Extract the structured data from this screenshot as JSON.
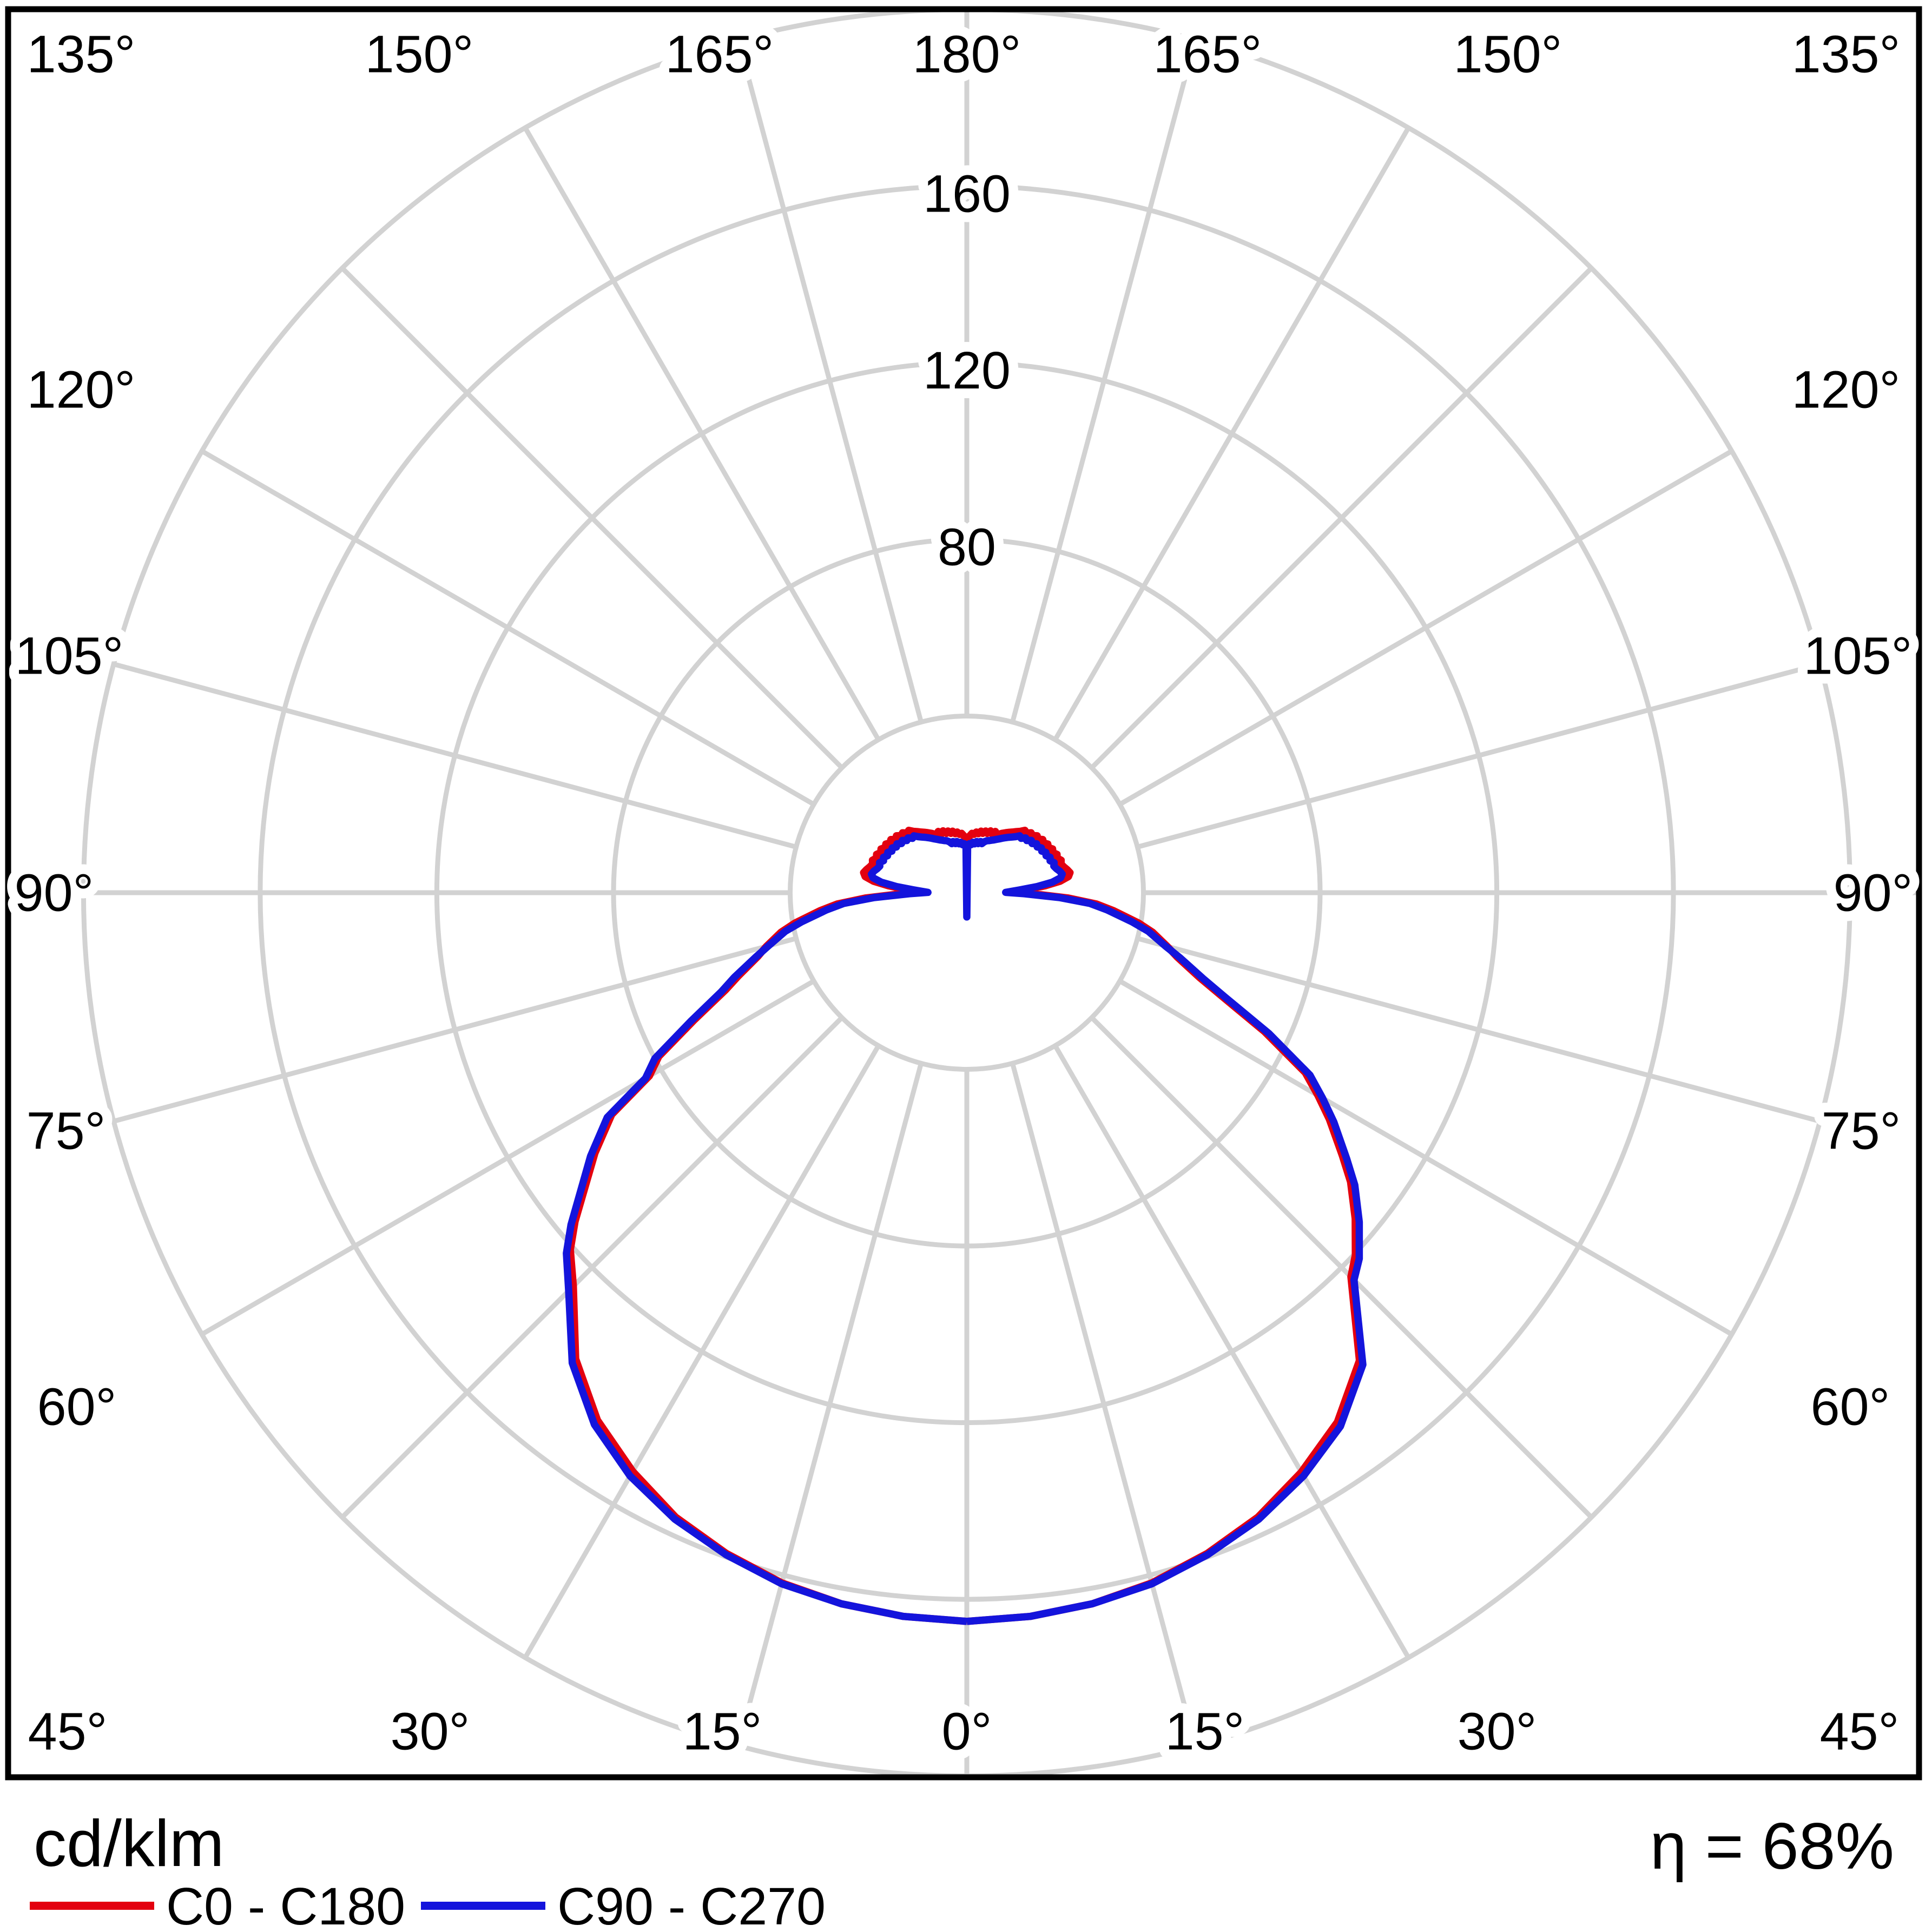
{
  "chart_data": {
    "type": "line",
    "subtype": "polar-photometric-intensity-distribution",
    "units_label": "cd/klm",
    "efficiency_label": "η = 68%",
    "grid": {
      "color": "#d2d2d2",
      "rings_cd_klm": [
        40,
        80,
        120,
        160,
        200
      ],
      "ring_labels": [
        "80",
        "120",
        "160"
      ],
      "ring_label_values": [
        80,
        120,
        160
      ],
      "spoke_step_deg": 15,
      "radial_max": 200
    },
    "angle_labels": {
      "top": [
        "135°",
        "150°",
        "165°",
        "180°",
        "165°",
        "150°",
        "135°"
      ],
      "bottom": [
        "45°",
        "30°",
        "15°",
        "0°",
        "15°",
        "30°",
        "45°"
      ],
      "left": [
        "120°",
        "105°",
        "90°",
        "75°",
        "60°"
      ],
      "right": [
        "120°",
        "105°",
        "90°",
        "75°",
        "60°"
      ]
    },
    "legend": [
      {
        "label": "C0 - C180",
        "color": "#e3000f"
      },
      {
        "label": "C90 - C270",
        "color": "#1414dc"
      }
    ],
    "series": [
      {
        "name": "C0 - C180",
        "color": "#e3000f",
        "left_gamma_value": [
          [
            0,
            165
          ],
          [
            5,
            164.5
          ],
          [
            10,
            163.5
          ],
          [
            15,
            161.8
          ],
          [
            20,
            159.2
          ],
          [
            25,
            156
          ],
          [
            30,
            151.3
          ],
          [
            35,
            145.8
          ],
          [
            40,
            137.8
          ],
          [
            45,
            126
          ],
          [
            48,
            120.8
          ],
          [
            50,
            115.8
          ],
          [
            55,
            102.8
          ],
          [
            58,
            94.8
          ],
          [
            60,
            83
          ],
          [
            62,
            79
          ],
          [
            65,
            68
          ],
          [
            68,
            59
          ],
          [
            70,
            55
          ],
          [
            73,
            49.5
          ],
          [
            75,
            47
          ],
          [
            78,
            43
          ],
          [
            80,
            39.5
          ],
          [
            83,
            33.5
          ],
          [
            85,
            29.5
          ],
          [
            87,
            23
          ],
          [
            89,
            15
          ],
          [
            90.5,
            9.5
          ],
          [
            93,
            13.8
          ],
          [
            95,
            17.8
          ],
          [
            97,
            21.3
          ],
          [
            99,
            23.3
          ],
          [
            101,
            23.8
          ],
          [
            103,
            23.3
          ],
          [
            105,
            22.7
          ],
          [
            107,
            22.3
          ],
          [
            109,
            22.6
          ],
          [
            111,
            21.9
          ],
          [
            113,
            22.2
          ],
          [
            115,
            21.5
          ],
          [
            117,
            21.8
          ],
          [
            119,
            21.1
          ],
          [
            121,
            21.4
          ],
          [
            123,
            20.7
          ],
          [
            125,
            21.0
          ],
          [
            127,
            20.2
          ],
          [
            129,
            20.5
          ],
          [
            131,
            19.7
          ],
          [
            133,
            19.9
          ],
          [
            135,
            19.1
          ],
          [
            137,
            19.3
          ],
          [
            139,
            18.4
          ],
          [
            141,
            17.8
          ],
          [
            143,
            17.2
          ],
          [
            145,
            16.7
          ],
          [
            147,
            16.2
          ],
          [
            149,
            15.7
          ],
          [
            151,
            15.2
          ],
          [
            153,
            14.8
          ],
          [
            155,
            15.3
          ],
          [
            157,
            14.5
          ],
          [
            159,
            15.0
          ],
          [
            161,
            14.2
          ],
          [
            163,
            14.6
          ],
          [
            165,
            13.9
          ],
          [
            167,
            14.3
          ],
          [
            169,
            13.6
          ],
          [
            171,
            13.9
          ],
          [
            173,
            13.3
          ],
          [
            175,
            13.5
          ],
          [
            177,
            12.9
          ],
          [
            179,
            12.0
          ],
          [
            180,
            8.3
          ]
        ],
        "right_gamma_value": [
          [
            0,
            165
          ],
          [
            5,
            164.5
          ],
          [
            10,
            163.5
          ],
          [
            15,
            161.8
          ],
          [
            20,
            159.2
          ],
          [
            25,
            156
          ],
          [
            30,
            151.5
          ],
          [
            35,
            146.3
          ],
          [
            40,
            138.3
          ],
          [
            45,
            123
          ],
          [
            47,
            120.3
          ],
          [
            50,
            114.8
          ],
          [
            53,
            108.8
          ],
          [
            55,
            103.8
          ],
          [
            58,
            96.8
          ],
          [
            60,
            91.8
          ],
          [
            62,
            86.8
          ],
          [
            65,
            74.3
          ],
          [
            68,
            62
          ],
          [
            70,
            56
          ],
          [
            73,
            49.8
          ],
          [
            75,
            47
          ],
          [
            78,
            43
          ],
          [
            80,
            39.5
          ],
          [
            83,
            33.5
          ],
          [
            85,
            29.5
          ],
          [
            87,
            23
          ],
          [
            89,
            15
          ],
          [
            90.5,
            9.5
          ],
          [
            93,
            13.8
          ],
          [
            95,
            17.8
          ],
          [
            97,
            21.3
          ],
          [
            99,
            23.3
          ],
          [
            101,
            23.8
          ],
          [
            103,
            23.3
          ],
          [
            105,
            22.7
          ],
          [
            107,
            22.3
          ],
          [
            109,
            22.6
          ],
          [
            111,
            21.9
          ],
          [
            113,
            22.2
          ],
          [
            115,
            21.5
          ],
          [
            117,
            21.8
          ],
          [
            119,
            21.1
          ],
          [
            121,
            21.4
          ],
          [
            123,
            20.7
          ],
          [
            125,
            21.0
          ],
          [
            127,
            20.2
          ],
          [
            129,
            20.5
          ],
          [
            131,
            19.7
          ],
          [
            133,
            19.9
          ],
          [
            135,
            19.1
          ],
          [
            137,
            19.3
          ],
          [
            139,
            18.4
          ],
          [
            141,
            17.8
          ],
          [
            143,
            17.2
          ],
          [
            145,
            16.7
          ],
          [
            147,
            16.2
          ],
          [
            149,
            15.7
          ],
          [
            151,
            15.2
          ],
          [
            153,
            14.8
          ],
          [
            155,
            15.3
          ],
          [
            157,
            14.5
          ],
          [
            159,
            15.0
          ],
          [
            161,
            14.2
          ],
          [
            163,
            14.6
          ],
          [
            165,
            13.9
          ],
          [
            167,
            14.3
          ],
          [
            169,
            13.6
          ],
          [
            171,
            13.9
          ],
          [
            173,
            13.3
          ],
          [
            175,
            13.5
          ],
          [
            177,
            12.9
          ],
          [
            179,
            12.0
          ],
          [
            180,
            8.3
          ]
        ]
      },
      {
        "name": "C90 - C270",
        "color": "#1414dc",
        "left_gamma_value": [
          [
            0,
            165
          ],
          [
            5,
            164.5
          ],
          [
            10,
            163.5
          ],
          [
            15,
            162
          ],
          [
            20,
            159.5
          ],
          [
            25,
            156.5
          ],
          [
            30,
            152.5
          ],
          [
            35,
            147
          ],
          [
            40,
            139
          ],
          [
            45,
            127.5
          ],
          [
            48,
            122
          ],
          [
            50,
            117
          ],
          [
            55,
            104
          ],
          [
            58,
            96
          ],
          [
            60,
            84
          ],
          [
            62,
            80
          ],
          [
            65,
            69
          ],
          [
            68,
            60
          ],
          [
            70,
            56
          ],
          [
            73,
            50
          ],
          [
            75,
            46.5
          ],
          [
            78,
            42
          ],
          [
            80,
            38
          ],
          [
            83,
            32
          ],
          [
            85,
            28
          ],
          [
            87,
            21
          ],
          [
            89,
            13
          ],
          [
            90.5,
            8.8
          ],
          [
            93,
            12.0
          ],
          [
            95,
            16.0
          ],
          [
            97,
            19.5
          ],
          [
            99,
            21.5
          ],
          [
            101,
            22.0
          ],
          [
            103,
            21.6
          ],
          [
            105,
            21.0
          ],
          [
            107,
            20.6
          ],
          [
            109,
            20.9
          ],
          [
            111,
            20.2
          ],
          [
            113,
            20.5
          ],
          [
            115,
            19.8
          ],
          [
            117,
            20.1
          ],
          [
            119,
            19.4
          ],
          [
            121,
            19.7
          ],
          [
            123,
            19.0
          ],
          [
            125,
            19.3
          ],
          [
            127,
            18.5
          ],
          [
            129,
            18.8
          ],
          [
            131,
            18.0
          ],
          [
            133,
            18.2
          ],
          [
            135,
            17.4
          ],
          [
            137,
            17.6
          ],
          [
            139,
            16.8
          ],
          [
            141,
            16.2
          ],
          [
            143,
            15.7
          ],
          [
            145,
            15.2
          ],
          [
            147,
            14.7
          ],
          [
            149,
            14.2
          ],
          [
            151,
            13.8
          ],
          [
            153,
            13.4
          ],
          [
            155,
            13.1
          ],
          [
            157,
            12.8
          ],
          [
            159,
            12.6
          ],
          [
            161,
            12.2
          ],
          [
            163,
            11.6
          ],
          [
            165,
            12.0
          ],
          [
            167,
            11.4
          ],
          [
            169,
            11.8
          ],
          [
            171,
            11.2
          ],
          [
            173,
            11.5
          ],
          [
            175,
            10.9
          ],
          [
            177,
            11.1
          ],
          [
            179,
            10.8
          ],
          [
            180,
            -5.5
          ]
        ],
        "right_gamma_value": [
          [
            0,
            165
          ],
          [
            5,
            164.5
          ],
          [
            10,
            163.5
          ],
          [
            15,
            162
          ],
          [
            20,
            159.5
          ],
          [
            25,
            156.5
          ],
          [
            30,
            152.5
          ],
          [
            35,
            147.5
          ],
          [
            40,
            139.5
          ],
          [
            45,
            124
          ],
          [
            47,
            121.5
          ],
          [
            50,
            116
          ],
          [
            53,
            110
          ],
          [
            55,
            105
          ],
          [
            58,
            98
          ],
          [
            60,
            93
          ],
          [
            62,
            88
          ],
          [
            65,
            75.5
          ],
          [
            68,
            63
          ],
          [
            70,
            57
          ],
          [
            73,
            50.5
          ],
          [
            75,
            46.5
          ],
          [
            78,
            42
          ],
          [
            80,
            38
          ],
          [
            83,
            32
          ],
          [
            85,
            28
          ],
          [
            87,
            21
          ],
          [
            89,
            13
          ],
          [
            90.5,
            8.8
          ],
          [
            93,
            12.0
          ],
          [
            95,
            16.0
          ],
          [
            97,
            19.5
          ],
          [
            99,
            21.5
          ],
          [
            101,
            22.0
          ],
          [
            103,
            21.6
          ],
          [
            105,
            21.0
          ],
          [
            107,
            20.6
          ],
          [
            109,
            20.9
          ],
          [
            111,
            20.2
          ],
          [
            113,
            20.5
          ],
          [
            115,
            19.8
          ],
          [
            117,
            20.1
          ],
          [
            119,
            19.4
          ],
          [
            121,
            19.7
          ],
          [
            123,
            19.0
          ],
          [
            125,
            19.3
          ],
          [
            127,
            18.5
          ],
          [
            129,
            18.8
          ],
          [
            131,
            18.0
          ],
          [
            133,
            18.2
          ],
          [
            135,
            17.4
          ],
          [
            137,
            17.6
          ],
          [
            139,
            16.8
          ],
          [
            141,
            16.2
          ],
          [
            143,
            15.7
          ],
          [
            145,
            15.2
          ],
          [
            147,
            14.7
          ],
          [
            149,
            14.2
          ],
          [
            151,
            13.8
          ],
          [
            153,
            13.4
          ],
          [
            155,
            13.1
          ],
          [
            157,
            12.8
          ],
          [
            159,
            12.6
          ],
          [
            161,
            12.2
          ],
          [
            163,
            11.6
          ],
          [
            165,
            12.0
          ],
          [
            167,
            11.4
          ],
          [
            169,
            11.8
          ],
          [
            171,
            11.2
          ],
          [
            173,
            11.5
          ],
          [
            175,
            10.9
          ],
          [
            177,
            11.1
          ],
          [
            179,
            10.8
          ],
          [
            180,
            -5.5
          ]
        ]
      }
    ]
  }
}
